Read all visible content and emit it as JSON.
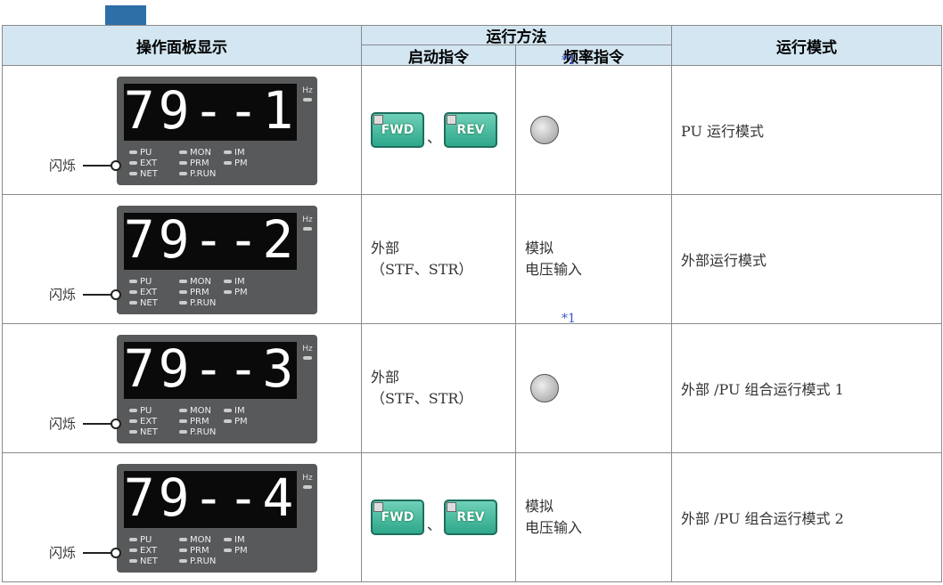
{
  "header": {
    "display": "操作面板显示",
    "method": "运行方法",
    "start": "启动指令",
    "freq": "频率指令",
    "mode": "运行模式"
  },
  "panel_labels": {
    "hz": "Hz",
    "blink": "闪烁",
    "pu": "PU",
    "ext": "EXT",
    "net": "NET",
    "mon": "MON",
    "prm": "PRM",
    "prun": "P.RUN",
    "im": "IM",
    "pm": "PM"
  },
  "rows": [
    {
      "display": "79--1",
      "start": {
        "buttons": [
          "FWD",
          "REV"
        ],
        "sep": "、"
      },
      "freq": {
        "note": "*1"
      },
      "mode": "PU 运行模式"
    },
    {
      "display": "79--2",
      "start": {
        "lines": [
          "外部",
          "（STF、STR）"
        ]
      },
      "freq": {
        "lines": [
          "模拟",
          "电压输入"
        ]
      },
      "mode": "外部运行模式"
    },
    {
      "display": "79--3",
      "start": {
        "lines": [
          "外部",
          "（STF、STR）"
        ]
      },
      "freq": {
        "note": "*1"
      },
      "mode": "外部 /PU 组合运行模式 1"
    },
    {
      "display": "79--4",
      "start": {
        "buttons": [
          "FWD",
          "REV"
        ],
        "sep": "、"
      },
      "freq": {
        "lines": [
          "模拟",
          "电压输入"
        ]
      },
      "mode": "外部 /PU 组合运行模式 2"
    }
  ]
}
